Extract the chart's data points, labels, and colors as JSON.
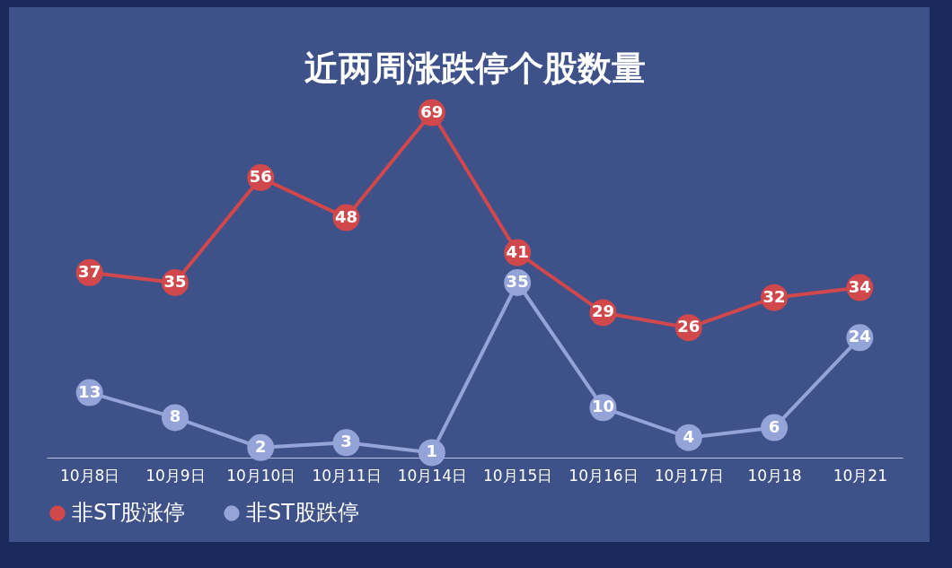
{
  "chart_data": {
    "type": "line",
    "title": "近两周涨跌停个股数量",
    "categories": [
      "10月8日",
      "10月9日",
      "10月10日",
      "10月11日",
      "10月14日",
      "10月15日",
      "10月16日",
      "10月17日",
      "10月18",
      "10月21"
    ],
    "series": [
      {
        "name": "非ST股涨停",
        "color": "#d0484c",
        "values": [
          37,
          35,
          56,
          48,
          69,
          41,
          29,
          26,
          32,
          34
        ]
      },
      {
        "name": "非ST股跌停",
        "color": "#94a3d8",
        "values": [
          13,
          8,
          2,
          3,
          1,
          35,
          10,
          4,
          6,
          24
        ]
      }
    ],
    "marker": "circle",
    "data_labels": true,
    "legend": "bottom",
    "tick_labels": "x"
  }
}
